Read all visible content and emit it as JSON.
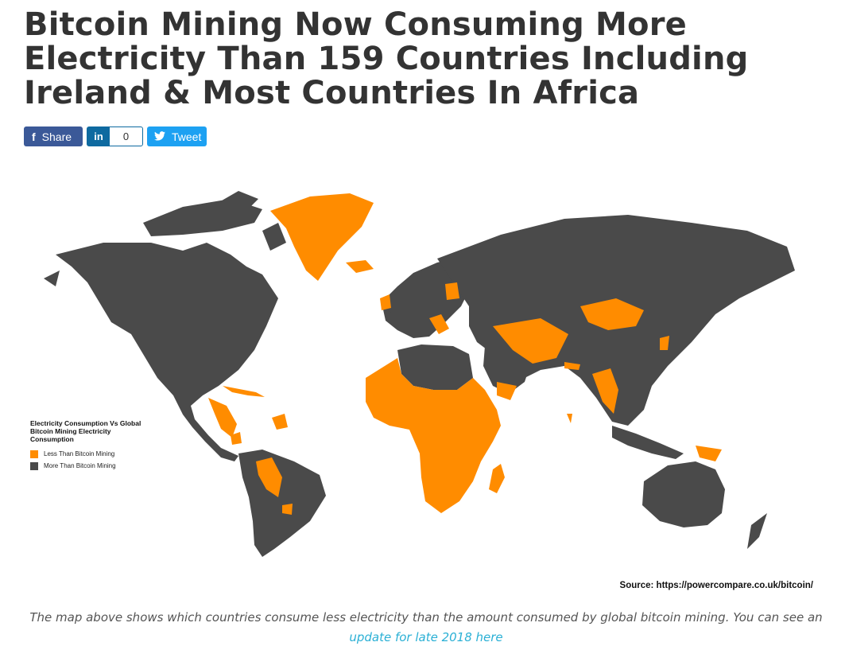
{
  "article": {
    "headline": "Bitcoin Mining Now Consuming More Electricity Than 159 Countries Including Ireland & Most Countries In Africa"
  },
  "share_bar": {
    "facebook_label": "Share",
    "linkedin_icon": "in",
    "linkedin_count": "0",
    "twitter_label": "Tweet",
    "facebook_color": "#3b5998",
    "linkedin_color": "#0e6aa0",
    "twitter_color": "#1da1f2"
  },
  "map": {
    "legend": {
      "title": "Electricity Consumption Vs Global Bitcoin Mining Electricity Consumption",
      "items": [
        {
          "label": "Less Than Bitcoin Mining",
          "color": "#ff8c00"
        },
        {
          "label": "More Than Bitcoin Mining",
          "color": "#4a4a4a"
        }
      ]
    },
    "source": "Source: https://powercompare.co.uk/bitcoin/",
    "less_color": "#ff8c00",
    "more_color": "#4a4a4a"
  },
  "caption": {
    "text": "The map above shows which countries consume less electricity than the amount consumed by global bitcoin mining. You can see an ",
    "link_text": "update for late 2018 here"
  }
}
